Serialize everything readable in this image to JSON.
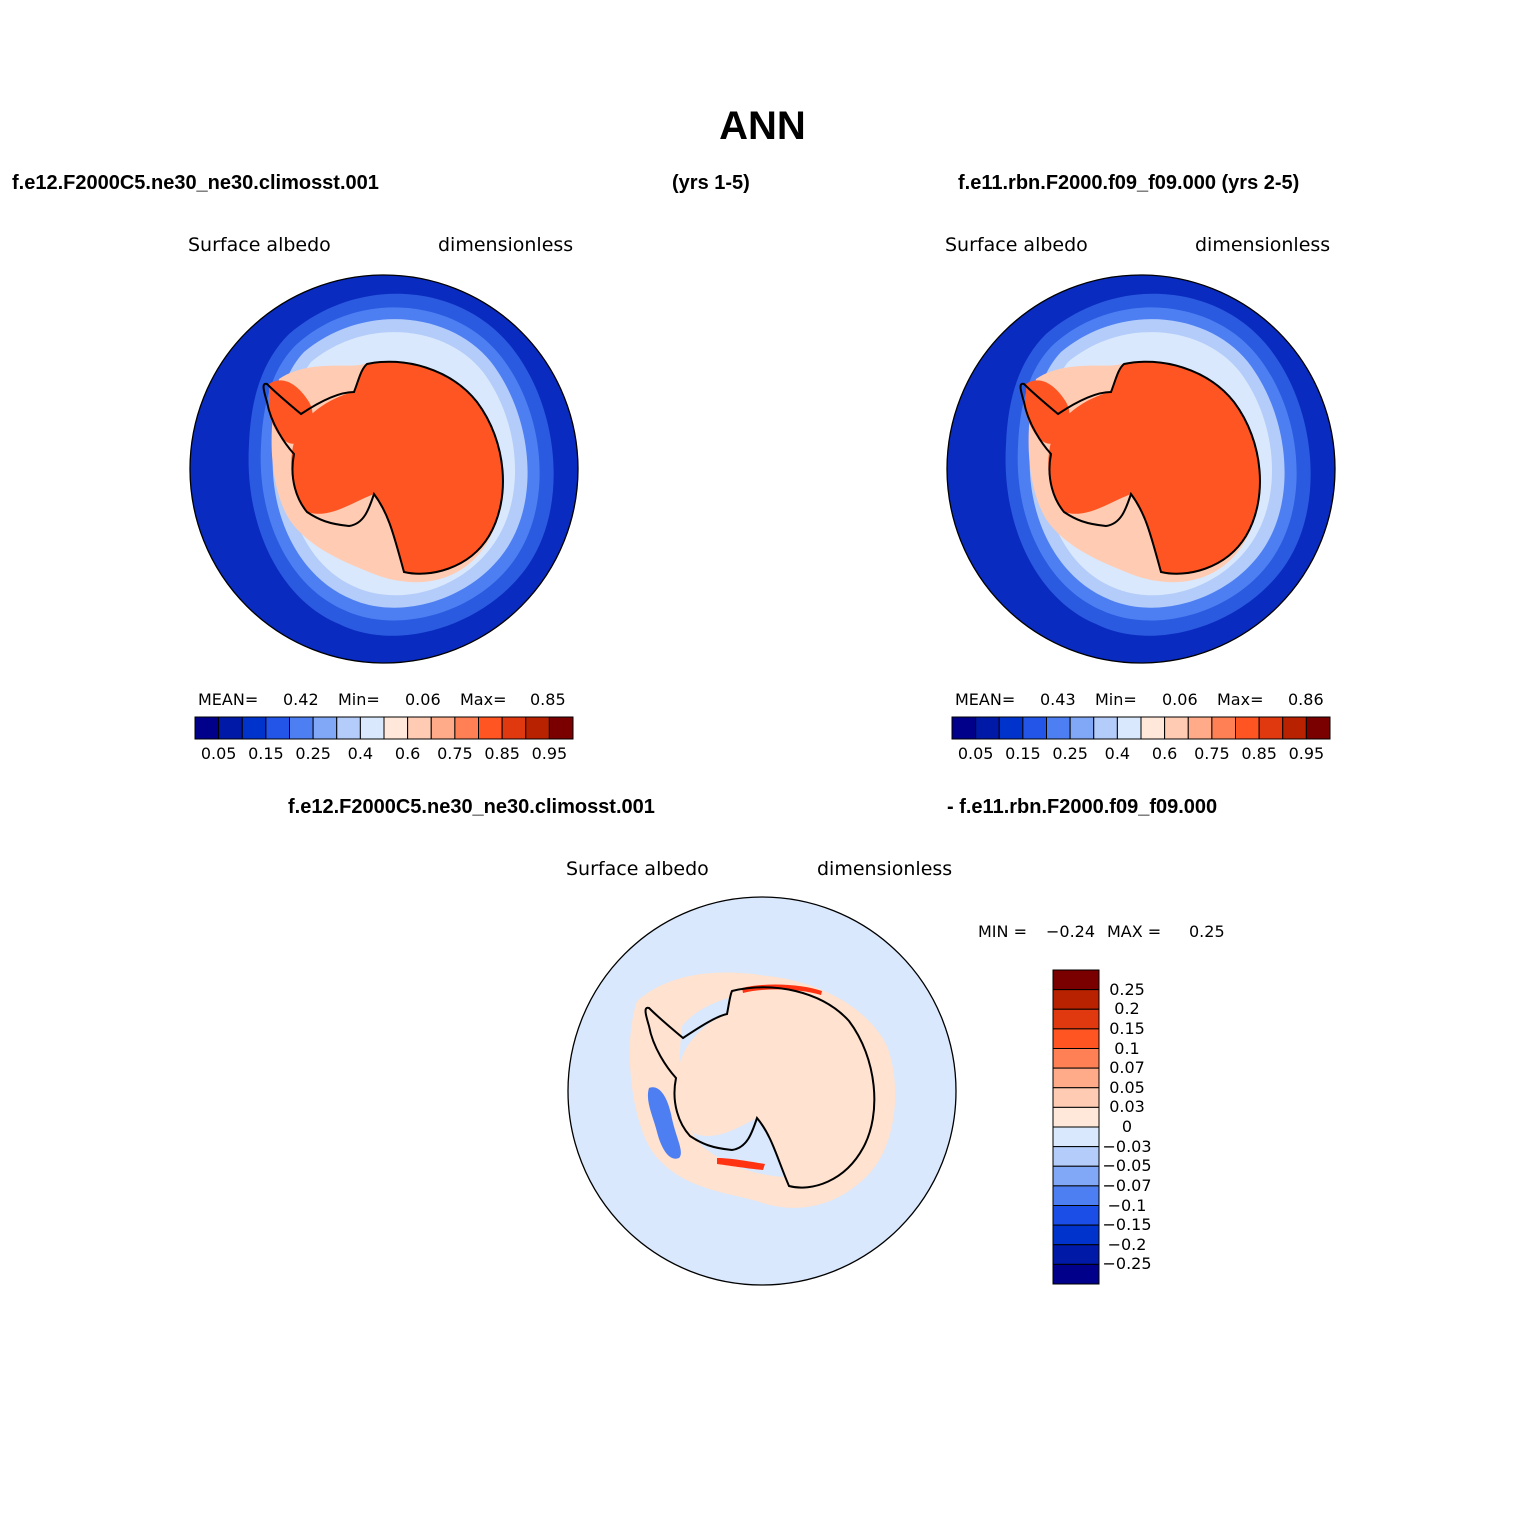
{
  "page_title": "ANN",
  "top_left_run": "f.e12.F2000C5.ne30_ne30.climosst.001",
  "top_left_years": "(yrs 1-5)",
  "top_right_run": "f.e11.rbn.F2000.f09_f09.000 (yrs 2-5)",
  "diff_left_run": "f.e12.F2000C5.ne30_ne30.climosst.001",
  "diff_right_run": "- f.e11.rbn.F2000.f09_f09.000",
  "panels": [
    {
      "variable": "Surface albedo",
      "units": "dimensionless",
      "stats": {
        "mean_label": "MEAN=",
        "mean": "0.42",
        "min_label": "Min=",
        "min": "0.06",
        "max_label": "Max=",
        "max": "0.85"
      }
    },
    {
      "variable": "Surface albedo",
      "units": "dimensionless",
      "stats": {
        "mean_label": "MEAN=",
        "mean": "0.43",
        "min_label": "Min=",
        "min": "0.06",
        "max_label": "Max=",
        "max": "0.86"
      }
    },
    {
      "variable": "Surface albedo",
      "units": "dimensionless",
      "stats": {
        "min_label": "MIN =",
        "min": "−0.24",
        "max_label": "MAX =",
        "max": "0.25"
      }
    }
  ],
  "abs_colorbar": {
    "colors": [
      "#00008a",
      "#0019a6",
      "#0033cc",
      "#2255e8",
      "#4d7ff2",
      "#80a8f7",
      "#b3ccfa",
      "#d9e8fc",
      "#ffe8d9",
      "#ffccb3",
      "#ffaa88",
      "#ff8055",
      "#ff5522",
      "#e0380f",
      "#b82200",
      "#7a0000"
    ],
    "tick_labels": [
      "0.05",
      "0.15",
      "0.25",
      "0.4",
      "0.6",
      "0.75",
      "0.85",
      "0.95"
    ]
  },
  "diff_colorbar": {
    "colors": [
      "#00008a",
      "#0019a6",
      "#0033cc",
      "#1a4ee6",
      "#4d7ff2",
      "#80a8f7",
      "#b3ccfa",
      "#d9e8fc",
      "#ffe8d9",
      "#ffccb3",
      "#ffaa88",
      "#ff8055",
      "#ff5522",
      "#e0380f",
      "#b82200",
      "#7a0000"
    ],
    "tick_labels": [
      "0.25",
      "0.2",
      "0.15",
      "0.1",
      "0.07",
      "0.05",
      "0.03",
      "0",
      "−0.03",
      "−0.05",
      "−0.07",
      "−0.1",
      "−0.15",
      "−0.2",
      "−0.25"
    ]
  },
  "map_colors": {
    "ocean_deep": "#0a2bbf",
    "ocean_mid": "#2a5ae0",
    "ocean_light": "#4d7ff2",
    "sea_ice_outer": "#b3ccfa",
    "sea_ice_inner": "#d9e8fc",
    "shelf": "#ffccb3",
    "ice_sheet": "#ff5522",
    "diff_background": "#d9e8fc",
    "diff_positive": "#ffe2cf",
    "diff_negative": "#4d7ff2",
    "diff_strong": "#ff3311"
  }
}
